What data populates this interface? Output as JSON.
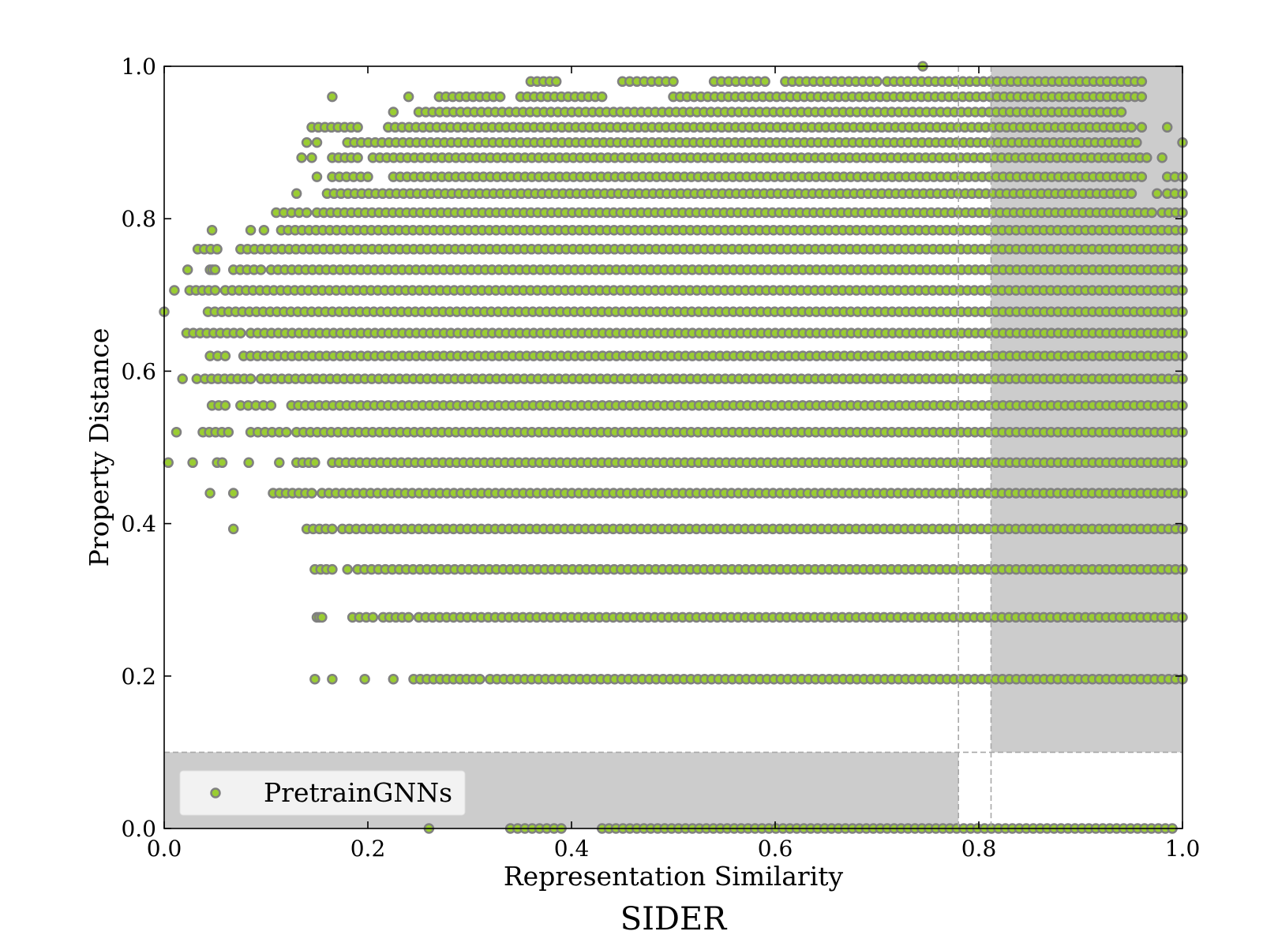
{
  "chart_data": {
    "type": "scatter",
    "title": "SIDER",
    "xlabel": "Representation Similarity",
    "ylabel": "Property Distance",
    "xlim": [
      0.0,
      1.0
    ],
    "ylim": [
      0.0,
      1.0
    ],
    "xticks": [
      "0.0",
      "0.2",
      "0.4",
      "0.6",
      "0.8",
      "1.0"
    ],
    "yticks": [
      "0.0",
      "0.2",
      "0.4",
      "0.6",
      "0.8",
      "1.0"
    ],
    "grid": false,
    "legend_position": "lower-left",
    "series": [
      {
        "name": "PretrainGNNs",
        "marker_fill": "#9acd32",
        "marker_edge": "#808080",
        "bands": [
          {
            "y": 1.0,
            "points": [
              0.745
            ]
          },
          {
            "y": 0.98,
            "segments": [
              [
                0.36,
                0.385
              ],
              [
                0.45,
                0.5
              ],
              [
                0.54,
                0.59
              ],
              [
                0.61,
                0.7
              ],
              [
                0.71,
                0.96
              ]
            ]
          },
          {
            "y": 0.96,
            "points": [
              0.165,
              0.24
            ],
            "segments": [
              [
                0.27,
                0.33
              ],
              [
                0.35,
                0.43
              ],
              [
                0.5,
                0.96
              ]
            ]
          },
          {
            "y": 0.94,
            "points": [
              0.225
            ],
            "segments": [
              [
                0.25,
                0.94
              ]
            ]
          },
          {
            "y": 0.92,
            "points": [
              0.96,
              0.985
            ],
            "segments": [
              [
                0.145,
                0.19
              ],
              [
                0.22,
                0.95
              ]
            ]
          },
          {
            "y": 0.9,
            "points": [
              0.14,
              0.15,
              1.0
            ],
            "segments": [
              [
                0.18,
                0.955
              ]
            ]
          },
          {
            "y": 0.88,
            "points": [
              0.135,
              0.145,
              0.98
            ],
            "segments": [
              [
                0.165,
                0.19
              ],
              [
                0.205,
                0.965
              ]
            ]
          },
          {
            "y": 0.855,
            "points": [
              0.15
            ],
            "segments": [
              [
                0.165,
                0.2
              ],
              [
                0.225,
                0.96
              ],
              [
                0.985,
                1.0
              ]
            ]
          },
          {
            "y": 0.833,
            "points": [
              0.13,
              0.975
            ],
            "segments": [
              [
                0.16,
                0.95
              ],
              [
                0.985,
                1.0
              ]
            ]
          },
          {
            "y": 0.808,
            "segments": [
              [
                0.11,
                0.14
              ],
              [
                0.15,
                0.97
              ],
              [
                0.98,
                1.0
              ]
            ]
          },
          {
            "y": 0.785,
            "points": [
              0.047,
              0.085,
              0.098
            ],
            "segments": [
              [
                0.115,
                1.0
              ]
            ]
          },
          {
            "y": 0.76,
            "segments": [
              [
                0.033,
                0.052
              ],
              [
                0.075,
                1.0
              ]
            ]
          },
          {
            "y": 0.733,
            "points": [
              0.023
            ],
            "segments": [
              [
                0.045,
                0.05
              ],
              [
                0.068,
                0.095
              ],
              [
                0.105,
                1.0
              ]
            ]
          },
          {
            "y": 0.706,
            "points": [
              0.01
            ],
            "segments": [
              [
                0.025,
                0.05
              ],
              [
                0.06,
                1.0
              ]
            ]
          },
          {
            "y": 0.678,
            "points": [
              0.0
            ],
            "segments": [
              [
                0.043,
                1.0
              ]
            ]
          },
          {
            "y": 0.65,
            "segments": [
              [
                0.022,
                0.075
              ],
              [
                0.085,
                1.0
              ]
            ]
          },
          {
            "y": 0.62,
            "segments": [
              [
                0.045,
                0.06
              ],
              [
                0.078,
                1.0
              ]
            ]
          },
          {
            "y": 0.59,
            "points": [
              0.018,
              0.032
            ],
            "segments": [
              [
                0.04,
                0.085
              ],
              [
                0.095,
                1.0
              ]
            ]
          },
          {
            "y": 0.555,
            "segments": [
              [
                0.047,
                0.06
              ],
              [
                0.075,
                0.105
              ],
              [
                0.125,
                1.0
              ]
            ]
          },
          {
            "y": 0.52,
            "points": [
              0.012
            ],
            "segments": [
              [
                0.038,
                0.063
              ],
              [
                0.085,
                0.12
              ],
              [
                0.13,
                1.0
              ]
            ]
          },
          {
            "y": 0.48,
            "points": [
              0.004,
              0.028,
              0.052,
              0.057,
              0.083,
              0.113
            ],
            "segments": [
              [
                0.13,
                0.148
              ],
              [
                0.165,
                1.0
              ]
            ]
          },
          {
            "y": 0.44,
            "points": [
              0.045,
              0.068
            ],
            "segments": [
              [
                0.107,
                0.145
              ],
              [
                0.155,
                1.0
              ]
            ]
          },
          {
            "y": 0.393,
            "points": [
              0.068
            ],
            "segments": [
              [
                0.14,
                0.165
              ],
              [
                0.175,
                1.0
              ]
            ]
          },
          {
            "y": 0.34,
            "points": [
              0.18
            ],
            "segments": [
              [
                0.148,
                0.165
              ],
              [
                0.19,
                1.0
              ]
            ]
          },
          {
            "y": 0.277,
            "segments": [
              [
                0.15,
                0.155
              ],
              [
                0.185,
                0.205
              ],
              [
                0.215,
                0.24
              ],
              [
                0.25,
                1.0
              ]
            ]
          },
          {
            "y": 0.196,
            "points": [
              0.148,
              0.165,
              0.197,
              0.225
            ],
            "segments": [
              [
                0.245,
                0.31
              ],
              [
                0.32,
                1.0
              ]
            ]
          },
          {
            "y": 0.0,
            "points": [
              0.26
            ],
            "segments": [
              [
                0.34,
                0.39
              ],
              [
                0.43,
                0.99
              ]
            ]
          }
        ]
      }
    ],
    "shaded_regions": [
      {
        "x": [
          0.0,
          0.78
        ],
        "y": [
          0.0,
          0.1
        ]
      },
      {
        "x": [
          0.812,
          1.0
        ],
        "y": [
          0.1,
          1.0
        ]
      }
    ],
    "reference_lines": [
      {
        "orientation": "vertical",
        "x": 0.78,
        "y_range": [
          0.0,
          1.0
        ]
      },
      {
        "orientation": "vertical",
        "x": 0.812,
        "y_range": [
          0.0,
          1.0
        ]
      },
      {
        "orientation": "horizontal",
        "y": 0.1,
        "x_range": [
          0.0,
          1.0
        ]
      }
    ]
  }
}
